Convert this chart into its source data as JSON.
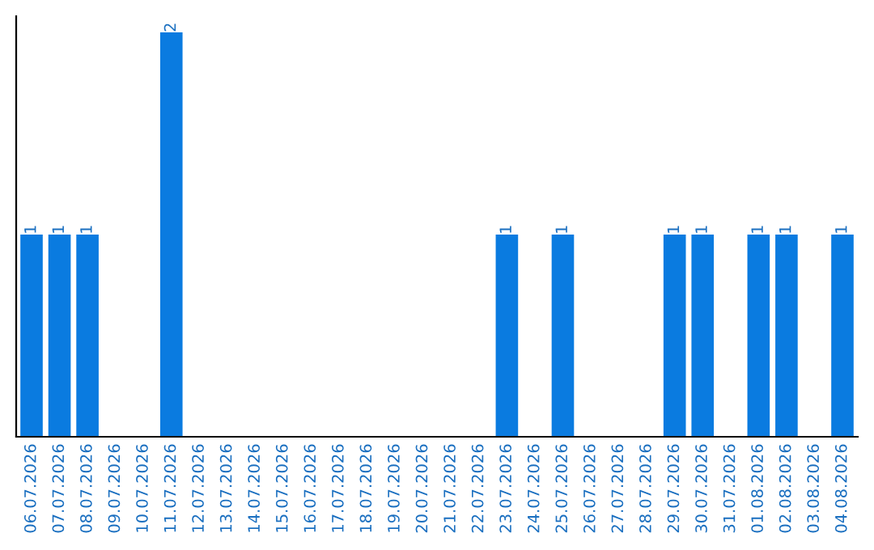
{
  "chart_data": {
    "type": "bar",
    "categories": [
      "06.07.2026",
      "07.07.2026",
      "08.07.2026",
      "09.07.2026",
      "10.07.2026",
      "11.07.2026",
      "12.07.2026",
      "13.07.2026",
      "14.07.2026",
      "15.07.2026",
      "16.07.2026",
      "17.07.2026",
      "18.07.2026",
      "19.07.2026",
      "20.07.2026",
      "21.07.2026",
      "22.07.2026",
      "23.07.2026",
      "24.07.2026",
      "25.07.2026",
      "26.07.2026",
      "27.07.2026",
      "28.07.2026",
      "29.07.2026",
      "30.07.2026",
      "31.07.2026",
      "01.08.2026",
      "02.08.2026",
      "03.08.2026",
      "04.08.2026"
    ],
    "values": [
      1,
      1,
      1,
      0,
      0,
      2,
      0,
      0,
      0,
      0,
      0,
      0,
      0,
      0,
      0,
      0,
      0,
      1,
      0,
      1,
      0,
      0,
      0,
      1,
      1,
      0,
      1,
      1,
      0,
      1
    ],
    "value_labels": [
      "1",
      "1",
      "1",
      null,
      null,
      "2",
      null,
      null,
      null,
      null,
      null,
      null,
      null,
      null,
      null,
      null,
      null,
      "1",
      null,
      "1",
      null,
      null,
      null,
      "1",
      "1",
      null,
      "1",
      "1",
      null,
      "1"
    ],
    "color": "#0a7be0",
    "grid": false,
    "legend": false
  }
}
